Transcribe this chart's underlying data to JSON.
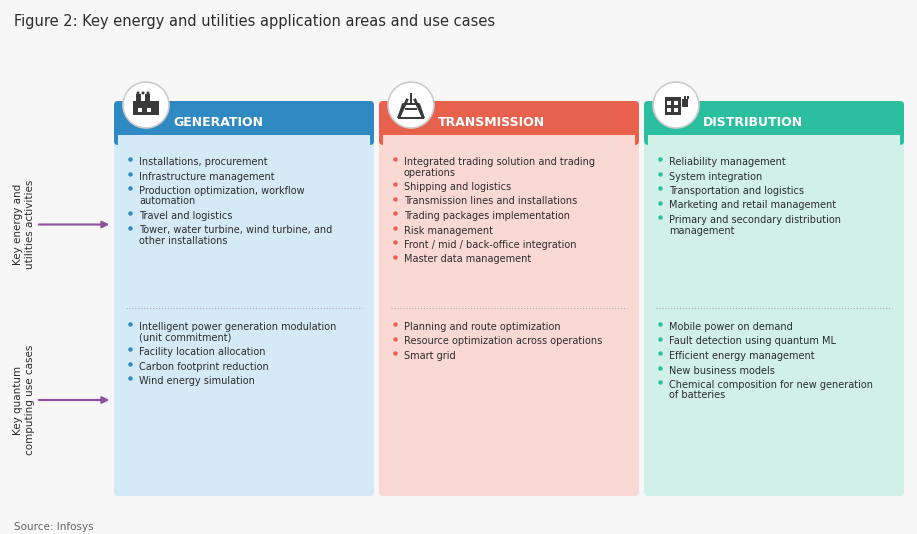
{
  "title": "Figure 2: Key energy and utilities application areas and use cases",
  "source": "Source: Infosys",
  "bg_color": "#f7f7f7",
  "columns": [
    {
      "label": "GENERATION",
      "header_color": "#2f8ac4",
      "body_color": "#d4eaf7",
      "top_items": [
        "Installations, procurement",
        "Infrastructure management",
        "Production optimization, workflow\nautomation",
        "Travel and logistics",
        "Tower, water turbine, wind turbine, and\nother installations"
      ],
      "bottom_items": [
        "Intelligent power generation modulation\n(unit commitment)",
        "Facility location allocation",
        "Carbon footprint reduction",
        "Wind energy simulation"
      ]
    },
    {
      "label": "TRANSMISSION",
      "header_color": "#e8614d",
      "body_color": "#fad9d5",
      "top_items": [
        "Integrated trading solution and trading\noperations",
        "Shipping and logistics",
        "Transmission lines and installations",
        "Trading packages implementation",
        "Risk management",
        "Front / mid / back-office integration",
        "Master data management"
      ],
      "bottom_items": [
        "Planning and route optimization",
        "Resource optimization across operations",
        "Smart grid"
      ]
    },
    {
      "label": "DISTRIBUTION",
      "header_color": "#2bbfa0",
      "body_color": "#d0f0e8",
      "top_items": [
        "Reliability management",
        "System integration",
        "Transportation and logistics",
        "Marketing and retail management",
        "Primary and secondary distribution\nmanagement"
      ],
      "bottom_items": [
        "Mobile power on demand",
        "Fault detection using quantum ML",
        "Efficient energy management",
        "New business models",
        "Chemical composition for new generation\nof batteries"
      ]
    }
  ],
  "row_label_1": "Key energy and\nutilities activities",
  "row_label_2": "Key quantum\ncomputing use cases",
  "arrow_color": "#8e4fa0",
  "dot_color": "#999999",
  "text_color": "#2c2c2c",
  "header_text_color": "#ffffff",
  "title_fontsize": 10.5,
  "header_fontsize": 9,
  "body_fontsize": 7,
  "label_fontsize": 7.5,
  "source_fontsize": 7.5
}
